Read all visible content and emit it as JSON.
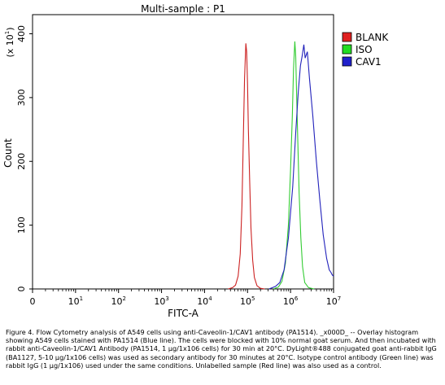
{
  "chart_data": {
    "type": "line",
    "title": "Multi-sample : P1",
    "xlabel": "FITC-A",
    "ylabel": "Count",
    "y_multiplier_label": "(x 10",
    "y_multiplier_exp": "1",
    "x_scale": "log",
    "x_ticks": [
      {
        "base": "0",
        "exp": ""
      },
      {
        "base": "10",
        "exp": "1"
      },
      {
        "base": "10",
        "exp": "2"
      },
      {
        "base": "10",
        "exp": "3"
      },
      {
        "base": "10",
        "exp": "4"
      },
      {
        "base": "10",
        "exp": "5"
      },
      {
        "base": "10",
        "exp": "6"
      },
      {
        "base": "10",
        "exp": "7"
      }
    ],
    "y_ticks": [
      "0",
      "100",
      "200",
      "300",
      "400"
    ],
    "ylim": [
      0,
      400
    ],
    "xlim_log10": [
      0,
      7
    ],
    "legend_position": "right",
    "series": [
      {
        "name": "BLANK",
        "color": "#cc2222",
        "fill": "#e02020",
        "points": [
          [
            4.55,
            0
          ],
          [
            4.65,
            2
          ],
          [
            4.72,
            6
          ],
          [
            4.78,
            20
          ],
          [
            4.83,
            55
          ],
          [
            4.87,
            130
          ],
          [
            4.9,
            230
          ],
          [
            4.93,
            330
          ],
          [
            4.96,
            385
          ],
          [
            4.98,
            372
          ],
          [
            5.0,
            320
          ],
          [
            5.02,
            250
          ],
          [
            5.05,
            170
          ],
          [
            5.08,
            95
          ],
          [
            5.12,
            45
          ],
          [
            5.16,
            18
          ],
          [
            5.22,
            5
          ],
          [
            5.3,
            1
          ],
          [
            5.4,
            0
          ]
        ]
      },
      {
        "name": "ISO",
        "color": "#33cc33",
        "fill": "#22dd22",
        "points": [
          [
            5.6,
            0
          ],
          [
            5.72,
            3
          ],
          [
            5.8,
            12
          ],
          [
            5.88,
            40
          ],
          [
            5.95,
            100
          ],
          [
            6.0,
            185
          ],
          [
            6.04,
            270
          ],
          [
            6.07,
            345
          ],
          [
            6.1,
            388
          ],
          [
            6.12,
            365
          ],
          [
            6.14,
            310
          ],
          [
            6.17,
            230
          ],
          [
            6.2,
            150
          ],
          [
            6.24,
            80
          ],
          [
            6.28,
            35
          ],
          [
            6.33,
            10
          ],
          [
            6.42,
            2
          ],
          [
            6.55,
            0
          ]
        ]
      },
      {
        "name": "CAV1",
        "color": "#2222bb",
        "fill": "#2020cc",
        "points": [
          [
            5.5,
            0
          ],
          [
            5.65,
            4
          ],
          [
            5.75,
            10
          ],
          [
            5.85,
            30
          ],
          [
            5.95,
            80
          ],
          [
            6.05,
            160
          ],
          [
            6.12,
            245
          ],
          [
            6.18,
            310
          ],
          [
            6.23,
            350
          ],
          [
            6.27,
            365
          ],
          [
            6.31,
            383
          ],
          [
            6.34,
            362
          ],
          [
            6.39,
            372
          ],
          [
            6.44,
            330
          ],
          [
            6.52,
            270
          ],
          [
            6.6,
            200
          ],
          [
            6.68,
            140
          ],
          [
            6.76,
            85
          ],
          [
            6.84,
            48
          ],
          [
            6.9,
            30
          ],
          [
            6.94,
            26
          ],
          [
            6.97,
            22
          ],
          [
            7.0,
            20
          ]
        ]
      }
    ]
  },
  "caption": "Figure 4. Flow Cytometry analysis of A549 cells using anti-Caveolin-1/CAV1 antibody (PA1514). _x000D_ -- Overlay histogram showing A549 cells stained with PA1514 (Blue line). The cells were blocked with 10% normal goat serum. And then incubated with rabbit anti-Caveolin-1/CAV1 Antibody (PA1514, 1 μg/1x106 cells) for 30 min at 20°C. DyLight®488 conjugated goat anti-rabbit IgG (BA1127, 5-10 μg/1x106 cells) was used as secondary antibody for 30 minutes at 20°C. Isotype control antibody (Green line) was rabbit IgG (1 μg/1x106) used under the same conditions. Unlabelled sample (Red line) was also used as a control."
}
